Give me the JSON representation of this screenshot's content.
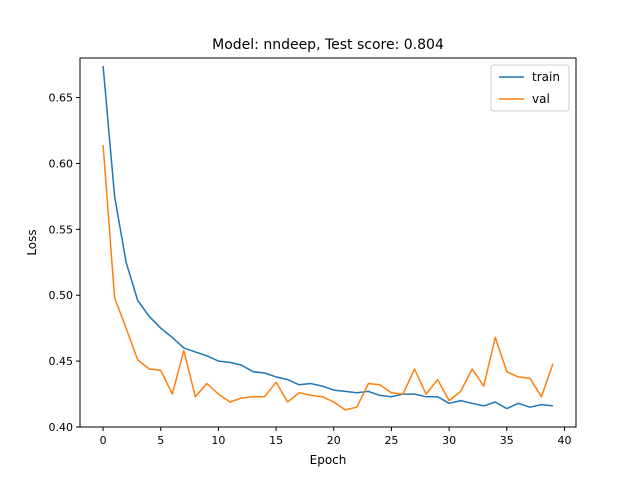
{
  "chart_data": {
    "type": "line",
    "title": "Model: nndeep, Test score: 0.804",
    "xlabel": "Epoch",
    "ylabel": "Loss",
    "xlim": [
      -2,
      41
    ],
    "ylim": [
      0.4,
      0.68
    ],
    "xticks": [
      0,
      5,
      10,
      15,
      20,
      25,
      30,
      35,
      40
    ],
    "yticks": [
      0.4,
      0.45,
      0.5,
      0.55,
      0.6,
      0.65
    ],
    "ytick_labels": [
      "0.40",
      "0.45",
      "0.50",
      "0.55",
      "0.60",
      "0.65"
    ],
    "legend_position": "upper-right",
    "grid": false,
    "x": [
      0,
      1,
      2,
      3,
      4,
      5,
      6,
      7,
      8,
      9,
      10,
      11,
      12,
      13,
      14,
      15,
      16,
      17,
      18,
      19,
      20,
      21,
      22,
      23,
      24,
      25,
      26,
      27,
      28,
      29,
      30,
      31,
      32,
      33,
      34,
      35,
      36,
      37,
      38,
      39
    ],
    "series": [
      {
        "name": "train",
        "color": "#1f77b4",
        "values": [
          0.674,
          0.575,
          0.525,
          0.496,
          0.484,
          0.475,
          0.468,
          0.46,
          0.457,
          0.454,
          0.45,
          0.449,
          0.447,
          0.442,
          0.441,
          0.438,
          0.436,
          0.432,
          0.433,
          0.431,
          0.428,
          0.427,
          0.426,
          0.427,
          0.424,
          0.423,
          0.425,
          0.425,
          0.423,
          0.423,
          0.418,
          0.42,
          0.418,
          0.416,
          0.419,
          0.414,
          0.418,
          0.415,
          0.417,
          0.416
        ]
      },
      {
        "name": "val",
        "color": "#ff7f0e",
        "values": [
          0.614,
          0.498,
          0.475,
          0.451,
          0.444,
          0.443,
          0.425,
          0.458,
          0.423,
          0.433,
          0.425,
          0.419,
          0.422,
          0.423,
          0.423,
          0.434,
          0.419,
          0.426,
          0.424,
          0.423,
          0.419,
          0.413,
          0.415,
          0.433,
          0.432,
          0.426,
          0.425,
          0.444,
          0.425,
          0.436,
          0.42,
          0.427,
          0.444,
          0.431,
          0.468,
          0.442,
          0.438,
          0.437,
          0.423,
          0.448
        ]
      }
    ]
  }
}
